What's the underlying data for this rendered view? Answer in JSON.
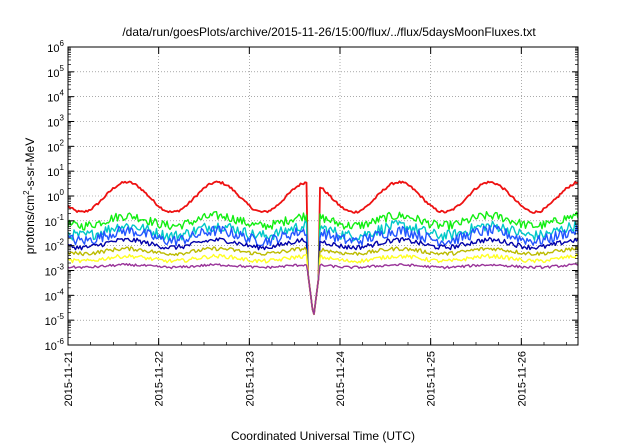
{
  "chart_data": {
    "type": "line",
    "title": "/data/run/goesPlots/archive/2015-11-26/15:00/flux/../flux/5daysMoonFluxes.txt",
    "xlabel": "Coordinated Universal Time (UTC)",
    "ylabel": {
      "prefix": "protons/cm",
      "superscript": "2",
      "suffix": "-s-sr-MeV"
    },
    "y_scale": "log",
    "ylim_exponents": [
      -6,
      6
    ],
    "y_ticks": [
      {
        "base": "10",
        "exp": "-6"
      },
      {
        "base": "10",
        "exp": "-5"
      },
      {
        "base": "10",
        "exp": "-4"
      },
      {
        "base": "10",
        "exp": "-3"
      },
      {
        "base": "10",
        "exp": "-2"
      },
      {
        "base": "10",
        "exp": "-1"
      },
      {
        "base": "10",
        "exp": "0"
      },
      {
        "base": "10",
        "exp": "1"
      },
      {
        "base": "10",
        "exp": "2"
      },
      {
        "base": "10",
        "exp": "3"
      },
      {
        "base": "10",
        "exp": "4"
      },
      {
        "base": "10",
        "exp": "5"
      },
      {
        "base": "10",
        "exp": "6"
      }
    ],
    "x_ticks": [
      "2015-11-21",
      "2015-11-22",
      "2015-11-23",
      "2015-11-24",
      "2015-11-25",
      "2015-11-26"
    ],
    "xlim": [
      "2015-11-21",
      "2015-11-26T15:00"
    ],
    "grid": "dotted",
    "legend": "none",
    "spike_date": "2015-11-23T17:00",
    "series": [
      {
        "color": "#ee1111",
        "base_flux": 0.9,
        "daily_cycle_decades": 0.6,
        "noise": 0.05
      },
      {
        "color": "#11ee11",
        "base_flux": 0.1,
        "daily_cycle_decades": 0.2,
        "noise": 0.18
      },
      {
        "color": "#00c8c8",
        "base_flux": 0.04,
        "daily_cycle_decades": 0.2,
        "noise": 0.22
      },
      {
        "color": "#2255ff",
        "base_flux": 0.025,
        "daily_cycle_decades": 0.2,
        "noise": 0.22
      },
      {
        "color": "#0000aa",
        "base_flux": 0.012,
        "daily_cycle_decades": 0.15,
        "noise": 0.1
      },
      {
        "color": "#bbbb00",
        "base_flux": 0.006,
        "daily_cycle_decades": 0.1,
        "noise": 0.08
      },
      {
        "color": "#ffff22",
        "base_flux": 0.003,
        "daily_cycle_decades": 0.1,
        "noise": 0.08
      },
      {
        "color": "#993399",
        "base_flux": 0.0015,
        "daily_cycle_decades": 0.05,
        "noise": 0.05
      }
    ]
  }
}
